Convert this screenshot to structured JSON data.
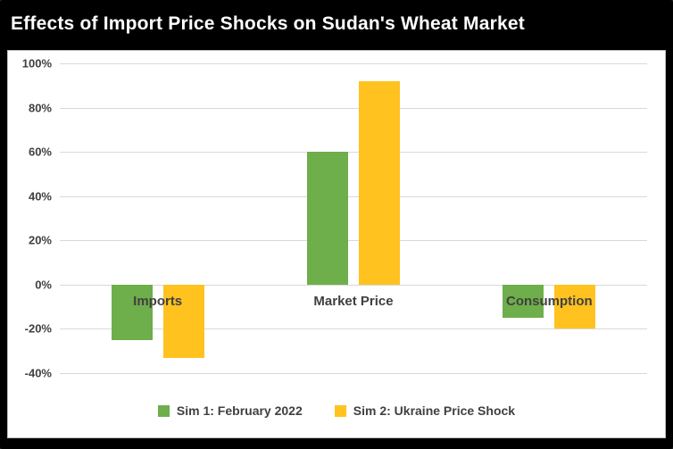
{
  "title": "Effects of Import Price Shocks on Sudan's Wheat Market",
  "chart_data": {
    "type": "bar",
    "title": "Effects of Import Price Shocks on Sudan's Wheat Market",
    "categories": [
      "Imports",
      "Market Price",
      "Consumption"
    ],
    "series": [
      {
        "name": "Sim 1: February 2022",
        "color": "#6EAE4B",
        "values": [
          -25,
          60,
          -15
        ]
      },
      {
        "name": "Sim 2: Ukraine Price Shock",
        "color": "#FFC21F",
        "values": [
          -33,
          92,
          -20
        ]
      }
    ],
    "ylim": [
      -40,
      100
    ],
    "yticks": [
      {
        "value": 100,
        "label": "100%"
      },
      {
        "value": 80,
        "label": "80%"
      },
      {
        "value": 60,
        "label": "60%"
      },
      {
        "value": 40,
        "label": "40%"
      },
      {
        "value": 20,
        "label": "20%"
      },
      {
        "value": 0,
        "label": "0%"
      },
      {
        "value": -20,
        "label": "-20%"
      },
      {
        "value": -40,
        "label": "-40%"
      }
    ],
    "grid": true,
    "legend_position": "bottom",
    "colors": {
      "frame_bg": "#000000",
      "panel_bg": "#ffffff",
      "panel_border": "#bfbfbf",
      "gridline": "#d9d9d9",
      "text": "#404040",
      "title_text": "#ffffff"
    }
  }
}
